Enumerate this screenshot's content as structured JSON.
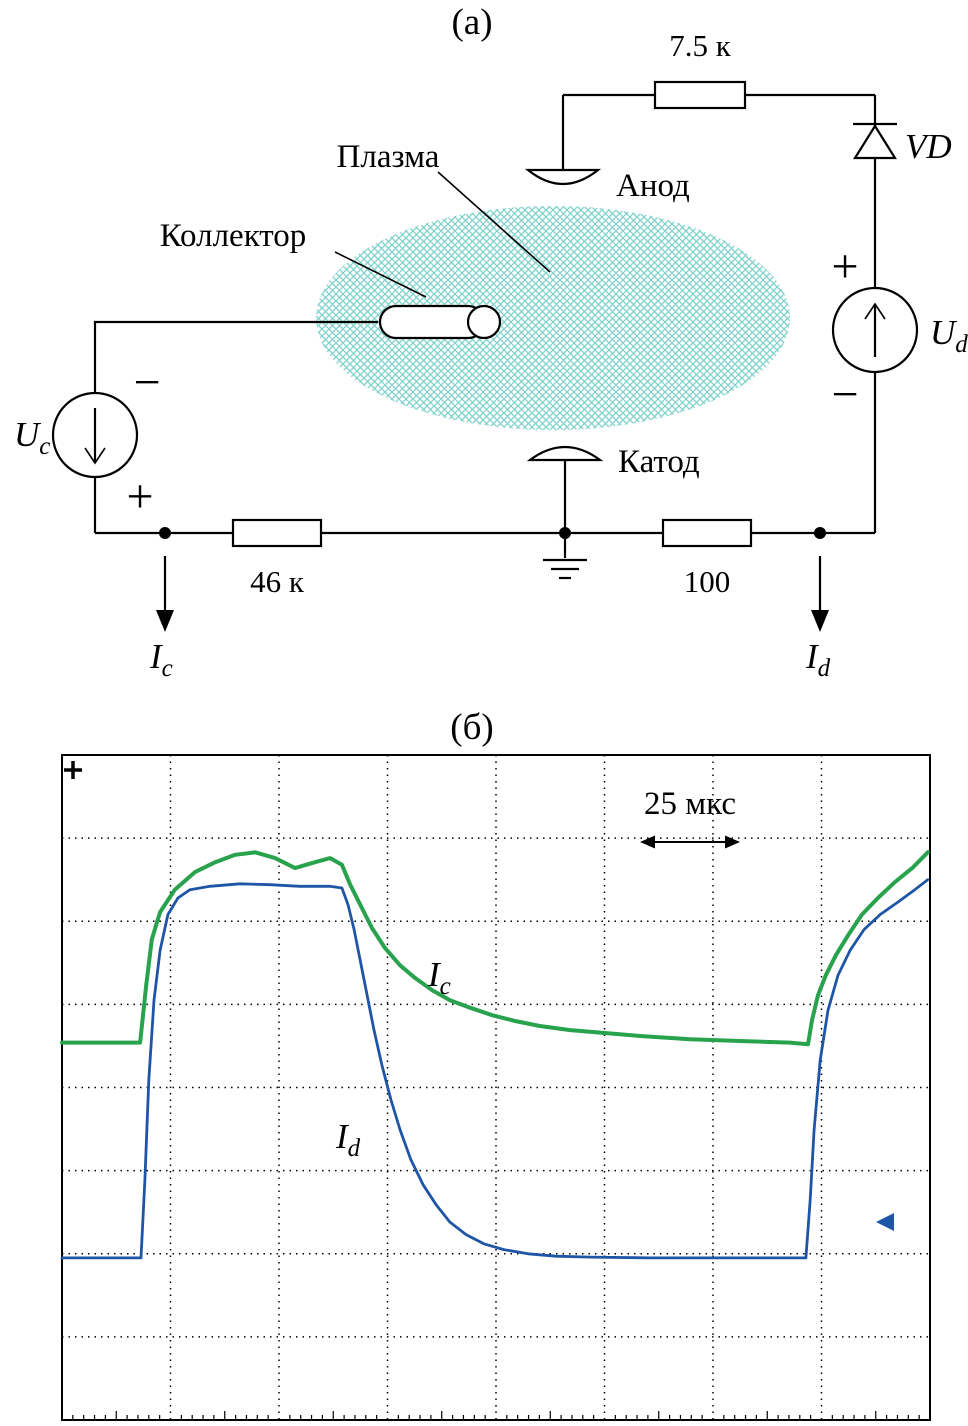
{
  "figure": {
    "part_a_label": "(а)",
    "part_b_label": "(б)"
  },
  "circuit": {
    "top_resistor_value": "7.5 к",
    "left_resistor_value": "46 к",
    "right_resistor_value": "100",
    "diode_label": "VD",
    "plasma_label": "Плазма",
    "collector_label": "Коллектор",
    "anode_label": "Анод",
    "cathode_label": "Катод",
    "left_source": {
      "name": "U",
      "sub": "c",
      "top_sign": "−",
      "bottom_sign": "+"
    },
    "right_source": {
      "name": "U",
      "sub": "d",
      "top_sign": "+",
      "bottom_sign": "−"
    },
    "left_current": {
      "name": "I",
      "sub": "c"
    },
    "right_current": {
      "name": "I",
      "sub": "d"
    },
    "plasma_color": "#7fd2cc"
  },
  "oscillogram": {
    "time_scale_label": "25 мкс",
    "trace_c_label": {
      "name": "I",
      "sub": "c"
    },
    "trace_d_label": {
      "name": "I",
      "sub": "d"
    }
  },
  "chart_data": {
    "type": "line",
    "title": "Oscillogram of collector current Ic and discharge current Id",
    "x_units": "мкс",
    "x_range": [
      0,
      200
    ],
    "time_per_division_us": 25,
    "grid_cols": 8,
    "grid_rows": 8,
    "y_units": "divisions",
    "y_divisions": 8,
    "legend": [
      "Ic",
      "Id"
    ],
    "series": [
      {
        "name": "Ic",
        "color": "#28a24c",
        "points": [
          [
            0,
            4.54
          ],
          [
            18,
            4.54
          ],
          [
            19.4,
            5.23
          ],
          [
            20.7,
            5.78
          ],
          [
            22.6,
            6.11
          ],
          [
            26,
            6.38
          ],
          [
            30.6,
            6.59
          ],
          [
            35.3,
            6.71
          ],
          [
            39.9,
            6.8
          ],
          [
            44.5,
            6.83
          ],
          [
            49.1,
            6.76
          ],
          [
            53.7,
            6.64
          ],
          [
            58.3,
            6.71
          ],
          [
            61.8,
            6.76
          ],
          [
            64.5,
            6.68
          ],
          [
            66.4,
            6.44
          ],
          [
            68.7,
            6.2
          ],
          [
            71.4,
            5.92
          ],
          [
            74.4,
            5.68
          ],
          [
            77.9,
            5.47
          ],
          [
            81.3,
            5.32
          ],
          [
            85.3,
            5.17
          ],
          [
            89.4,
            5.05
          ],
          [
            94,
            4.96
          ],
          [
            99.1,
            4.87
          ],
          [
            104.4,
            4.8
          ],
          [
            110.1,
            4.74
          ],
          [
            117.1,
            4.69
          ],
          [
            124,
            4.66
          ],
          [
            133.2,
            4.62
          ],
          [
            144.7,
            4.58
          ],
          [
            156.2,
            4.56
          ],
          [
            167.7,
            4.54
          ],
          [
            171.9,
            4.52
          ],
          [
            172.8,
            4.81
          ],
          [
            174.2,
            5.11
          ],
          [
            176,
            5.35
          ],
          [
            178.3,
            5.59
          ],
          [
            181.1,
            5.83
          ],
          [
            184.3,
            6.08
          ],
          [
            188,
            6.28
          ],
          [
            191.9,
            6.47
          ],
          [
            195.9,
            6.64
          ],
          [
            199.5,
            6.83
          ]
        ]
      },
      {
        "name": "Id",
        "color": "#1f55a5",
        "points": [
          [
            0,
            1.95
          ],
          [
            18.2,
            1.95
          ],
          [
            19.1,
            2.89
          ],
          [
            20,
            4.09
          ],
          [
            21.2,
            5.05
          ],
          [
            22.6,
            5.65
          ],
          [
            24.4,
            6.08
          ],
          [
            26.7,
            6.28
          ],
          [
            29.5,
            6.38
          ],
          [
            34.1,
            6.42
          ],
          [
            41,
            6.45
          ],
          [
            47.9,
            6.44
          ],
          [
            54.8,
            6.42
          ],
          [
            61.7,
            6.42
          ],
          [
            64.5,
            6.4
          ],
          [
            65.9,
            6.2
          ],
          [
            67.3,
            5.9
          ],
          [
            68.7,
            5.53
          ],
          [
            70.3,
            5.11
          ],
          [
            71.9,
            4.69
          ],
          [
            73.7,
            4.27
          ],
          [
            75.8,
            3.85
          ],
          [
            77.9,
            3.49
          ],
          [
            80.4,
            3.13
          ],
          [
            83.2,
            2.83
          ],
          [
            86.2,
            2.59
          ],
          [
            89.4,
            2.38
          ],
          [
            93.1,
            2.23
          ],
          [
            97.2,
            2.12
          ],
          [
            101.8,
            2.05
          ],
          [
            107.4,
            2.0
          ],
          [
            113.8,
            1.97
          ],
          [
            121.7,
            1.96
          ],
          [
            135.5,
            1.95
          ],
          [
            151.6,
            1.95
          ],
          [
            171.4,
            1.95
          ],
          [
            172.4,
            2.65
          ],
          [
            173.3,
            3.49
          ],
          [
            174.7,
            4.33
          ],
          [
            176.5,
            4.93
          ],
          [
            178.8,
            5.35
          ],
          [
            181.6,
            5.65
          ],
          [
            184.8,
            5.9
          ],
          [
            188.5,
            6.08
          ],
          [
            192.6,
            6.23
          ],
          [
            196.5,
            6.38
          ],
          [
            199.5,
            6.5
          ]
        ]
      }
    ]
  }
}
